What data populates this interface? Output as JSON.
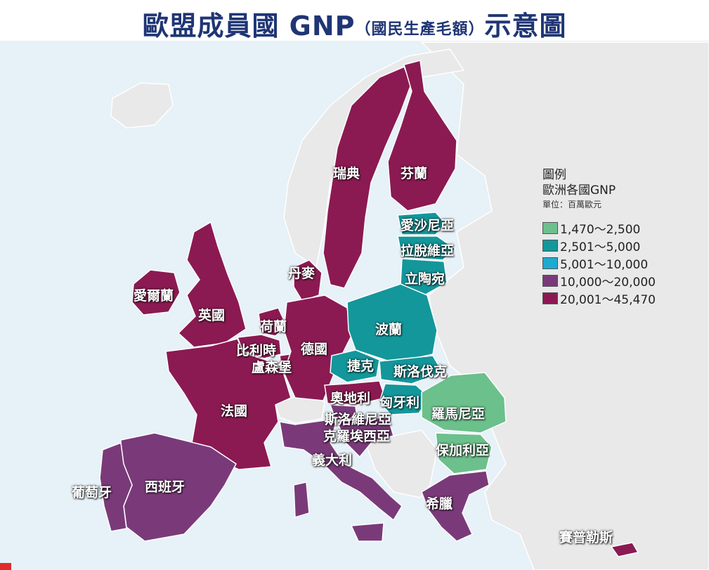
{
  "title": {
    "main": "歐盟成員國 GNP",
    "paren": "（國民生產毛額）",
    "suffix": "示意圖"
  },
  "legend": {
    "heading": "圖例",
    "subtitle": "歐洲各國GNP",
    "unit": "單位：百萬歐元",
    "items": [
      {
        "label": "1,470～2,500",
        "color": "#6cc08c"
      },
      {
        "label": "2,501～5,000",
        "color": "#13979b"
      },
      {
        "label": "5,001～10,000",
        "color": "#1ea9cf"
      },
      {
        "label": "10,000～20,000",
        "color": "#7a3a79"
      },
      {
        "label": "20,001～45,470",
        "color": "#8b1a52"
      }
    ]
  },
  "colors": {
    "sea": "#e6f1f8",
    "non_member": "#e9e9e9",
    "border": "#ffffff"
  },
  "countries": [
    {
      "name": "瑞典",
      "class": "20,001～45,470"
    },
    {
      "name": "芬蘭",
      "class": "20,001～45,470"
    },
    {
      "name": "愛沙尼亞",
      "class": "2,501～5,000"
    },
    {
      "name": "拉脫維亞",
      "class": "2,501～5,000"
    },
    {
      "name": "立陶宛",
      "class": "2,501～5,000"
    },
    {
      "name": "丹麥",
      "class": "20,001～45,470"
    },
    {
      "name": "愛爾蘭",
      "class": "20,001～45,470"
    },
    {
      "name": "英國",
      "class": "20,001～45,470"
    },
    {
      "name": "荷蘭",
      "class": "20,001～45,470"
    },
    {
      "name": "比利時",
      "class": "20,001～45,470"
    },
    {
      "name": "德國",
      "class": "20,001～45,470"
    },
    {
      "name": "盧森堡",
      "class": "20,001～45,470"
    },
    {
      "name": "波蘭",
      "class": "2,501～5,000"
    },
    {
      "name": "捷克",
      "class": "2,501～5,000"
    },
    {
      "name": "斯洛伐克",
      "class": "2,501～5,000"
    },
    {
      "name": "奧地利",
      "class": "20,001～45,470"
    },
    {
      "name": "匈牙利",
      "class": "2,501～5,000"
    },
    {
      "name": "法國",
      "class": "20,001～45,470"
    },
    {
      "name": "羅馬尼亞",
      "class": "1,470～2,500"
    },
    {
      "name": "斯洛維尼亞",
      "class": "10,000～20,000"
    },
    {
      "name": "克羅埃西亞",
      "class": "10,000～20,000"
    },
    {
      "name": "保加利亞",
      "class": "1,470～2,500"
    },
    {
      "name": "義大利",
      "class": "10,000～20,000"
    },
    {
      "name": "葡萄牙",
      "class": "10,000～20,000"
    },
    {
      "name": "西班牙",
      "class": "10,000～20,000"
    },
    {
      "name": "希臘",
      "class": "10,000～20,000"
    },
    {
      "name": "賽普勒斯",
      "class": "20,001～45,470"
    }
  ]
}
